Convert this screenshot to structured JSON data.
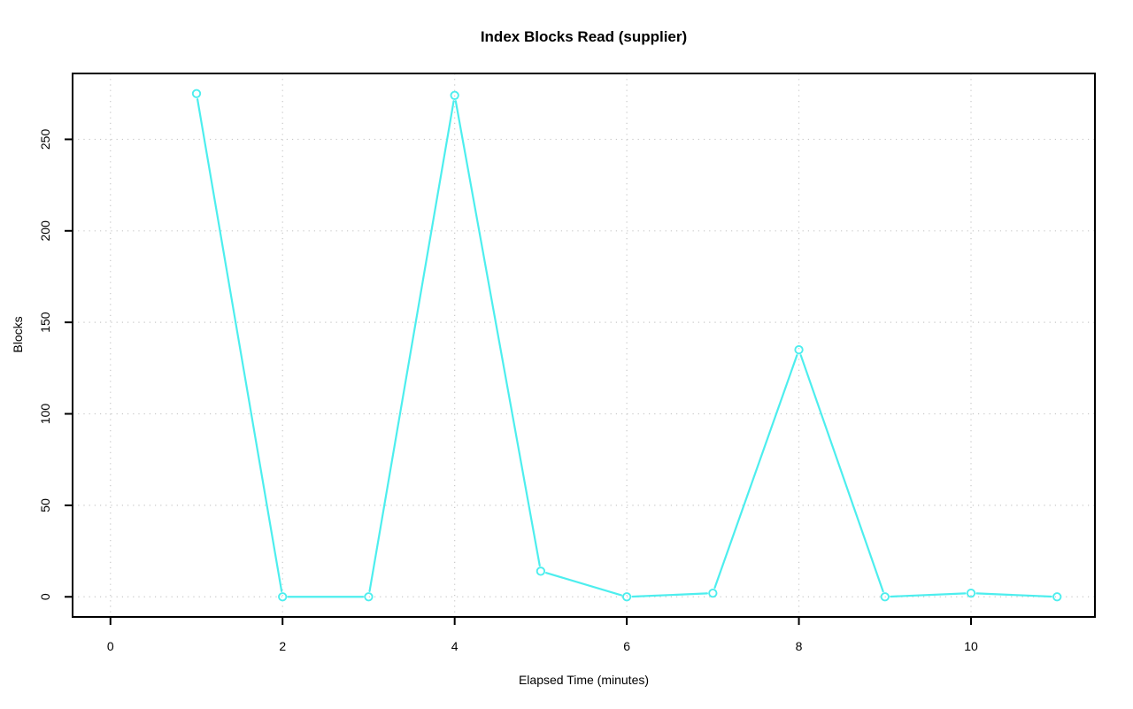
{
  "page": {
    "background": "#FFFFFF"
  },
  "chart_data": {
    "type": "line",
    "title": "Index Blocks Read (supplier)",
    "xlabel": "Elapsed Time (minutes)",
    "ylabel": "Blocks",
    "x": [
      1,
      2,
      3,
      4,
      5,
      6,
      7,
      8,
      9,
      10,
      11
    ],
    "series": [
      {
        "name": "index blocks read",
        "values": [
          275,
          0,
          0,
          274,
          14,
          0,
          2,
          135,
          0,
          2,
          0
        ]
      }
    ],
    "xticks": [
      0,
      2,
      4,
      6,
      8,
      10
    ],
    "yticks": [
      0,
      50,
      100,
      150,
      200,
      250
    ],
    "xlim": [
      -0.44,
      11.44
    ],
    "ylim": [
      -11,
      286
    ],
    "grid": true,
    "legend": "none",
    "line_style": "points-and-segments",
    "marker": "open-circle",
    "colors": {
      "series": "#4DEEEE",
      "grid": "#C8C8C8",
      "axis": "#000000",
      "text": "#000000",
      "background": "#FFFFFF"
    }
  }
}
